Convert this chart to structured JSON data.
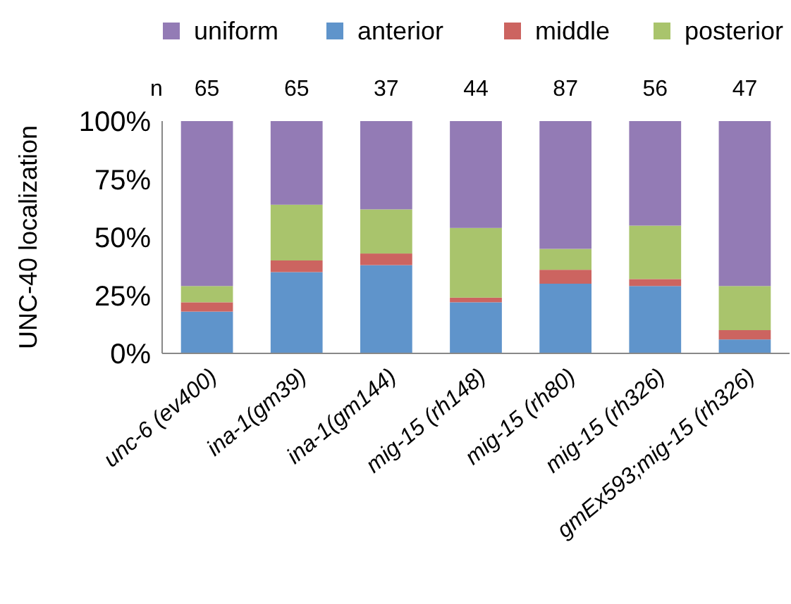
{
  "chart_data": {
    "type": "bar",
    "stacked": true,
    "ylabel": "UNC-40 localization",
    "categories": [
      "unc-6 (ev400)",
      "ina-1(gm39)",
      "ina-1(gm144)",
      "mig-15 (rh148)",
      "mig-15 (rh80)",
      "mig-15 (rh326)",
      "gmEx593;mig-15 (rh326)"
    ],
    "series": [
      {
        "name": "anterior",
        "color": "#5f94cb",
        "values": [
          18,
          35,
          38,
          22,
          30,
          29,
          6
        ]
      },
      {
        "name": "middle",
        "color": "#cc6460",
        "values": [
          4,
          5,
          5,
          2,
          6,
          3,
          4
        ]
      },
      {
        "name": "posterior",
        "color": "#a9c46c",
        "values": [
          7,
          24,
          19,
          30,
          9,
          23,
          19
        ]
      },
      {
        "name": "uniform",
        "color": "#937bb5",
        "values": [
          71,
          36,
          38,
          46,
          55,
          45,
          71
        ]
      }
    ],
    "ylim": [
      0,
      100
    ],
    "yticks": [
      {
        "value": 0,
        "label": "0%"
      },
      {
        "value": 25,
        "label": "25%"
      },
      {
        "value": 50,
        "label": "50%"
      },
      {
        "value": 75,
        "label": "75%"
      },
      {
        "value": 100,
        "label": "100%"
      }
    ],
    "annotations": [
      "n",
      "65",
      "65",
      "37",
      "44",
      "87",
      "56",
      "47"
    ],
    "legend": "top",
    "grid": false
  }
}
